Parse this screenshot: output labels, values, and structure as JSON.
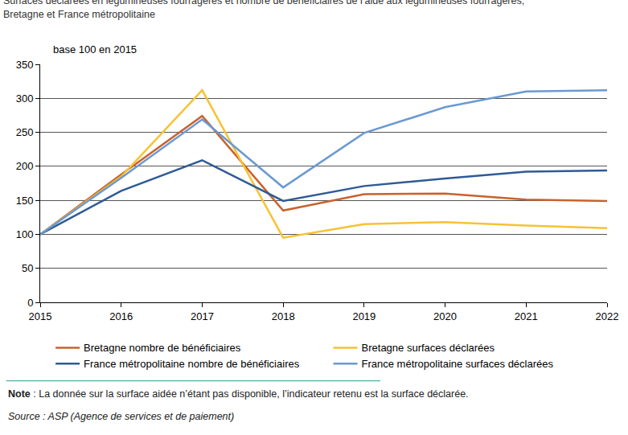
{
  "chart_data": {
    "type": "line",
    "title": "Surfaces déclarées en légumineuses fourragères et nombre de bénéficiaires de l’aide aux légumineuses fourragères, Bretagne et France métropolitaine",
    "y_label": "base 100 en 2015",
    "categories": [
      "2015",
      "2016",
      "2017",
      "2018",
      "2019",
      "2020",
      "2021",
      "2022"
    ],
    "series": [
      {
        "name": "Bretagne nombre de bénéficiaires",
        "color": "#c8622d",
        "values": [
          100,
          188,
          274,
          135,
          159,
          160,
          151,
          149
        ]
      },
      {
        "name": "Bretagne surfaces déclarées",
        "color": "#f7c233",
        "values": [
          100,
          185,
          312,
          95,
          115,
          118,
          113,
          109
        ]
      },
      {
        "name": "France métropolitaine nombre de bénéficiaires",
        "color": "#2f5b94",
        "values": [
          100,
          164,
          209,
          149,
          171,
          182,
          192,
          194
        ]
      },
      {
        "name": "France métropolitaine surfaces déclarées",
        "color": "#6a9ad2",
        "values": [
          100,
          183,
          269,
          169,
          249,
          287,
          310,
          312
        ]
      }
    ],
    "ylim": [
      0,
      350
    ],
    "yticks": [
      0,
      50,
      100,
      150,
      200,
      250,
      300,
      350
    ],
    "grid": true,
    "legend": "bottom",
    "annotations": [
      "Note : La donnée sur la surface aidée n’étant pas disponible, l’indicateur retenu est la surface déclarée.",
      "Source : ASP (Agence de services et de paiement)"
    ]
  }
}
